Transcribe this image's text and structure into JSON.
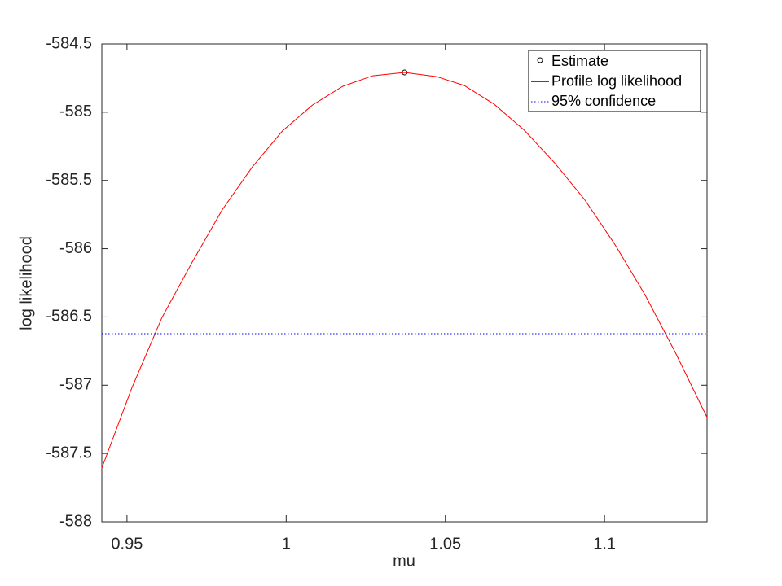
{
  "chart_data": {
    "type": "line",
    "xlabel": "mu",
    "ylabel": "log likelihood",
    "xlim": [
      0.9421,
      1.1322
    ],
    "ylim": [
      -588,
      -584.5
    ],
    "xticks": [
      0.95,
      1,
      1.05,
      1.1
    ],
    "yticks": [
      -588,
      -587.5,
      -587,
      -586.5,
      -586,
      -585.5,
      -585,
      -584.5
    ],
    "legend": "upper right",
    "series": [
      {
        "name": "Estimate",
        "color": "#000000",
        "linestyle": "none",
        "marker": "o",
        "x": [
          1.0372
        ],
        "values": [
          -584.709
        ]
      },
      {
        "name": "Profile log likelihood",
        "color": "#ff0000",
        "linestyle": "solid",
        "marker": "none",
        "x": [
          0.9421,
          0.9515,
          0.961,
          0.9705,
          0.9799,
          0.9894,
          0.9988,
          1.0083,
          1.0178,
          1.0272,
          1.0372,
          1.0472,
          1.0559,
          1.0653,
          1.0748,
          1.0843,
          1.0937,
          1.1032,
          1.1127,
          1.1221,
          1.1321
        ],
        "values": [
          -587.607,
          -587.022,
          -586.504,
          -586.098,
          -585.716,
          -585.4,
          -585.138,
          -584.947,
          -584.81,
          -584.733,
          -584.709,
          -584.739,
          -584.804,
          -584.941,
          -585.132,
          -585.371,
          -585.639,
          -585.967,
          -586.337,
          -586.754,
          -587.231
        ]
      },
      {
        "name": "95% confidence",
        "color": "#0000ff",
        "linestyle": "dotted",
        "marker": "none",
        "x": [
          0.9421,
          1.1322
        ],
        "values": [
          -586.623,
          -586.623
        ]
      }
    ]
  }
}
